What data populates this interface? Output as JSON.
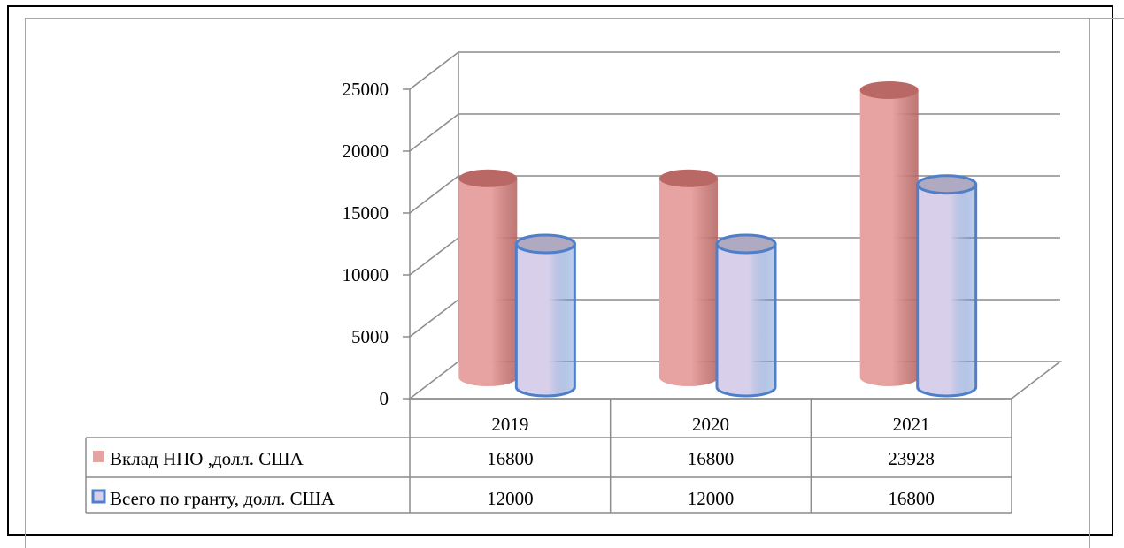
{
  "chart_data": {
    "type": "bar",
    "categories": [
      "2019",
      "2020",
      "2021"
    ],
    "series": [
      {
        "name": "Вклад НПО ,долл. США",
        "values": [
          16800,
          16800,
          23928
        ],
        "color": "#e6a3a1",
        "edge": "#b25f5c"
      },
      {
        "name": "Всего по гранту, долл. США",
        "values": [
          12000,
          12000,
          16800
        ],
        "color": "#d8d0ea",
        "edge": "#4f7fc8"
      }
    ],
    "y_ticks": [
      "0",
      "5000",
      "10000",
      "15000",
      "20000",
      "25000"
    ],
    "ylim": [
      0,
      25000
    ],
    "grid": true,
    "legend": "data-table",
    "bar_shape": "cylinder-3d"
  }
}
